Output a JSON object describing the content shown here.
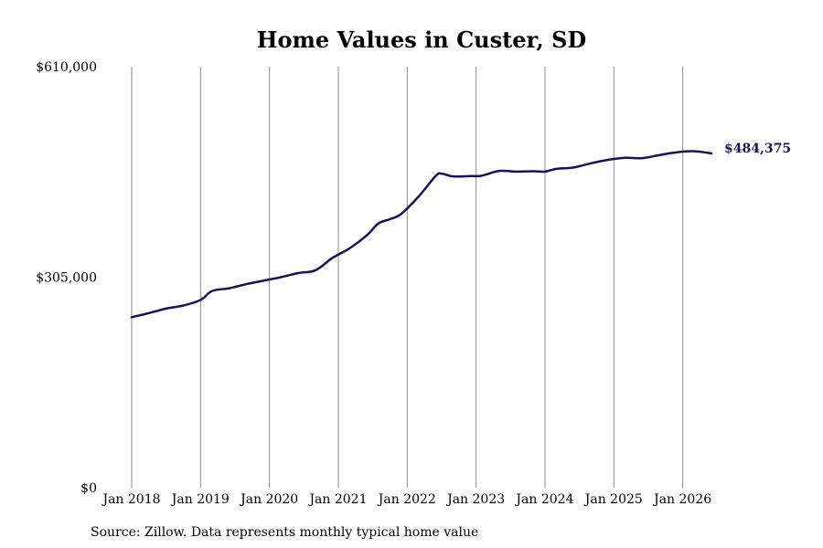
{
  "chart_data": {
    "type": "line",
    "title": "Home Values in Custer, SD",
    "xlabel": "",
    "ylabel": "",
    "ylim": [
      0,
      610000
    ],
    "y_ticks": [
      {
        "value": 0,
        "label": "$0"
      },
      {
        "value": 305000,
        "label": "$305,000"
      },
      {
        "value": 610000,
        "label": "$610,000"
      }
    ],
    "x_ticks": [
      {
        "value": "2018-01",
        "label": "Jan 2018"
      },
      {
        "value": "2019-01",
        "label": "Jan 2019"
      },
      {
        "value": "2020-01",
        "label": "Jan 2020"
      },
      {
        "value": "2021-01",
        "label": "Jan 2021"
      },
      {
        "value": "2022-01",
        "label": "Jan 2022"
      },
      {
        "value": "2023-01",
        "label": "Jan 2023"
      },
      {
        "value": "2024-01",
        "label": "Jan 2024"
      },
      {
        "value": "2025-01",
        "label": "Jan 2025"
      },
      {
        "value": "2026-01",
        "label": "Jan 2026"
      }
    ],
    "xlim": [
      "2018-01",
      "2026-06"
    ],
    "vertical_grid": true,
    "horizontal_grid": false,
    "legend": "none",
    "end_label": "$484,375",
    "series": [
      {
        "color": "#14145a",
        "points": [
          [
            "2018-01",
            247000
          ],
          [
            "2018-04",
            253000
          ],
          [
            "2018-07",
            259500
          ],
          [
            "2018-10",
            264000
          ],
          [
            "2019-01",
            272000
          ],
          [
            "2019-03",
            285000
          ],
          [
            "2019-06",
            289000
          ],
          [
            "2019-09",
            295000
          ],
          [
            "2019-12",
            300000
          ],
          [
            "2020-03",
            305000
          ],
          [
            "2020-06",
            311000
          ],
          [
            "2020-09",
            315000
          ],
          [
            "2020-12",
            333000
          ],
          [
            "2021-03",
            347000
          ],
          [
            "2021-06",
            366000
          ],
          [
            "2021-08",
            383000
          ],
          [
            "2021-10",
            389000
          ],
          [
            "2021-12",
            397000
          ],
          [
            "2022-03",
            422000
          ],
          [
            "2022-06",
            452000
          ],
          [
            "2022-07",
            455000
          ],
          [
            "2022-09",
            451000
          ],
          [
            "2022-12",
            451500
          ],
          [
            "2023-02",
            452000
          ],
          [
            "2023-05",
            459000
          ],
          [
            "2023-08",
            458000
          ],
          [
            "2023-11",
            458500
          ],
          [
            "2024-01",
            458000
          ],
          [
            "2024-03",
            462000
          ],
          [
            "2024-06",
            464000
          ],
          [
            "2024-09",
            470000
          ],
          [
            "2024-12",
            475000
          ],
          [
            "2025-03",
            478000
          ],
          [
            "2025-06",
            477500
          ],
          [
            "2025-09",
            482000
          ],
          [
            "2025-12",
            486000
          ],
          [
            "2026-03",
            487500
          ],
          [
            "2026-06",
            484375
          ]
        ]
      }
    ]
  },
  "footer": {
    "source": "Source: Zillow. Data represents monthly typical home value"
  }
}
